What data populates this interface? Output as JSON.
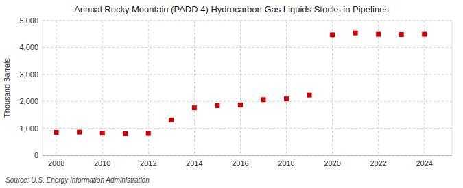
{
  "chart_data": {
    "type": "scatter",
    "title": "Annual Rocky Mountain (PADD 4) Hydrocarbon Gas Liquids Stocks in Pipelines",
    "ylabel": "Thousand Barrels",
    "annotations": [
      "Source: U.S. Energy Information Administration"
    ],
    "x": [
      2008,
      2009,
      2010,
      2011,
      2012,
      2013,
      2014,
      2015,
      2016,
      2017,
      2018,
      2019,
      2020,
      2021,
      2022,
      2023,
      2024
    ],
    "values": [
      850,
      860,
      820,
      800,
      810,
      1310,
      1760,
      1840,
      1870,
      2060,
      2090,
      2230,
      4470,
      4540,
      4490,
      4480,
      4490
    ],
    "color": "#cc0000",
    "marker": "square",
    "xlim": [
      2007.4,
      2025.2
    ],
    "ylim": [
      0,
      5000
    ],
    "xticks": [
      2008,
      2010,
      2012,
      2014,
      2016,
      2018,
      2020,
      2022,
      2024
    ],
    "yticks": [
      0,
      {
        "value": 1000,
        "label": "1,000"
      },
      {
        "value": 2000,
        "label": "2,000"
      },
      {
        "value": 3000,
        "label": "3,000"
      },
      {
        "value": 4000,
        "label": "4,000"
      },
      {
        "value": 5000,
        "label": "5,000"
      }
    ],
    "grid": true
  }
}
